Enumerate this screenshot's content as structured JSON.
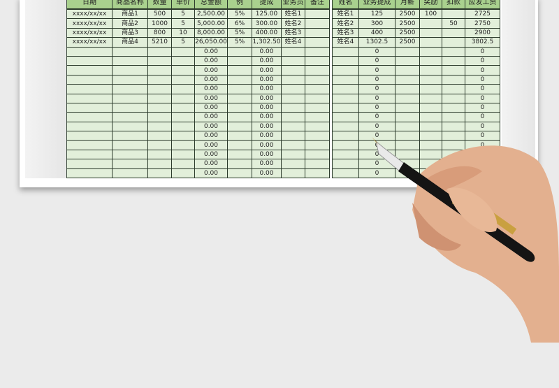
{
  "sales": {
    "headers": [
      "日期",
      "商品名称",
      "数量",
      "单价",
      "总金额",
      "例",
      "提成",
      "业务员",
      "备注"
    ],
    "rows": [
      [
        "xxxx/xx/xx",
        "商品1",
        "500",
        "5",
        "2,500.00",
        "5%",
        "125.00",
        "姓名1",
        ""
      ],
      [
        "xxxx/xx/xx",
        "商品2",
        "1000",
        "5",
        "5,000.00",
        "6%",
        "300.00",
        "姓名2",
        ""
      ],
      [
        "xxxx/xx/xx",
        "商品3",
        "800",
        "10",
        "8,000.00",
        "5%",
        "400.00",
        "姓名3",
        ""
      ],
      [
        "xxxx/xx/xx",
        "商品4",
        "5210",
        "5",
        "26,050.00",
        "5%",
        "1,302.50",
        "姓名4",
        ""
      ]
    ],
    "empty_total": "0.00",
    "empty_commission": "0.00",
    "empty_rows": 14
  },
  "salary": {
    "headers": [
      "姓名",
      "业务提成",
      "月薪",
      "奖励",
      "扣款",
      "应发工资"
    ],
    "rows": [
      [
        "姓名1",
        "125",
        "2500",
        "100",
        "",
        "2725"
      ],
      [
        "姓名2",
        "300",
        "2500",
        "",
        "50",
        "2750"
      ],
      [
        "姓名3",
        "400",
        "2500",
        "",
        "",
        "2900"
      ],
      [
        "姓名4",
        "1302.5",
        "2500",
        "",
        "",
        "3802.5"
      ]
    ],
    "empty_value": "0",
    "empty_rows": 14
  },
  "colors": {
    "header": "#a9d18e",
    "cell": "#e2efda"
  }
}
